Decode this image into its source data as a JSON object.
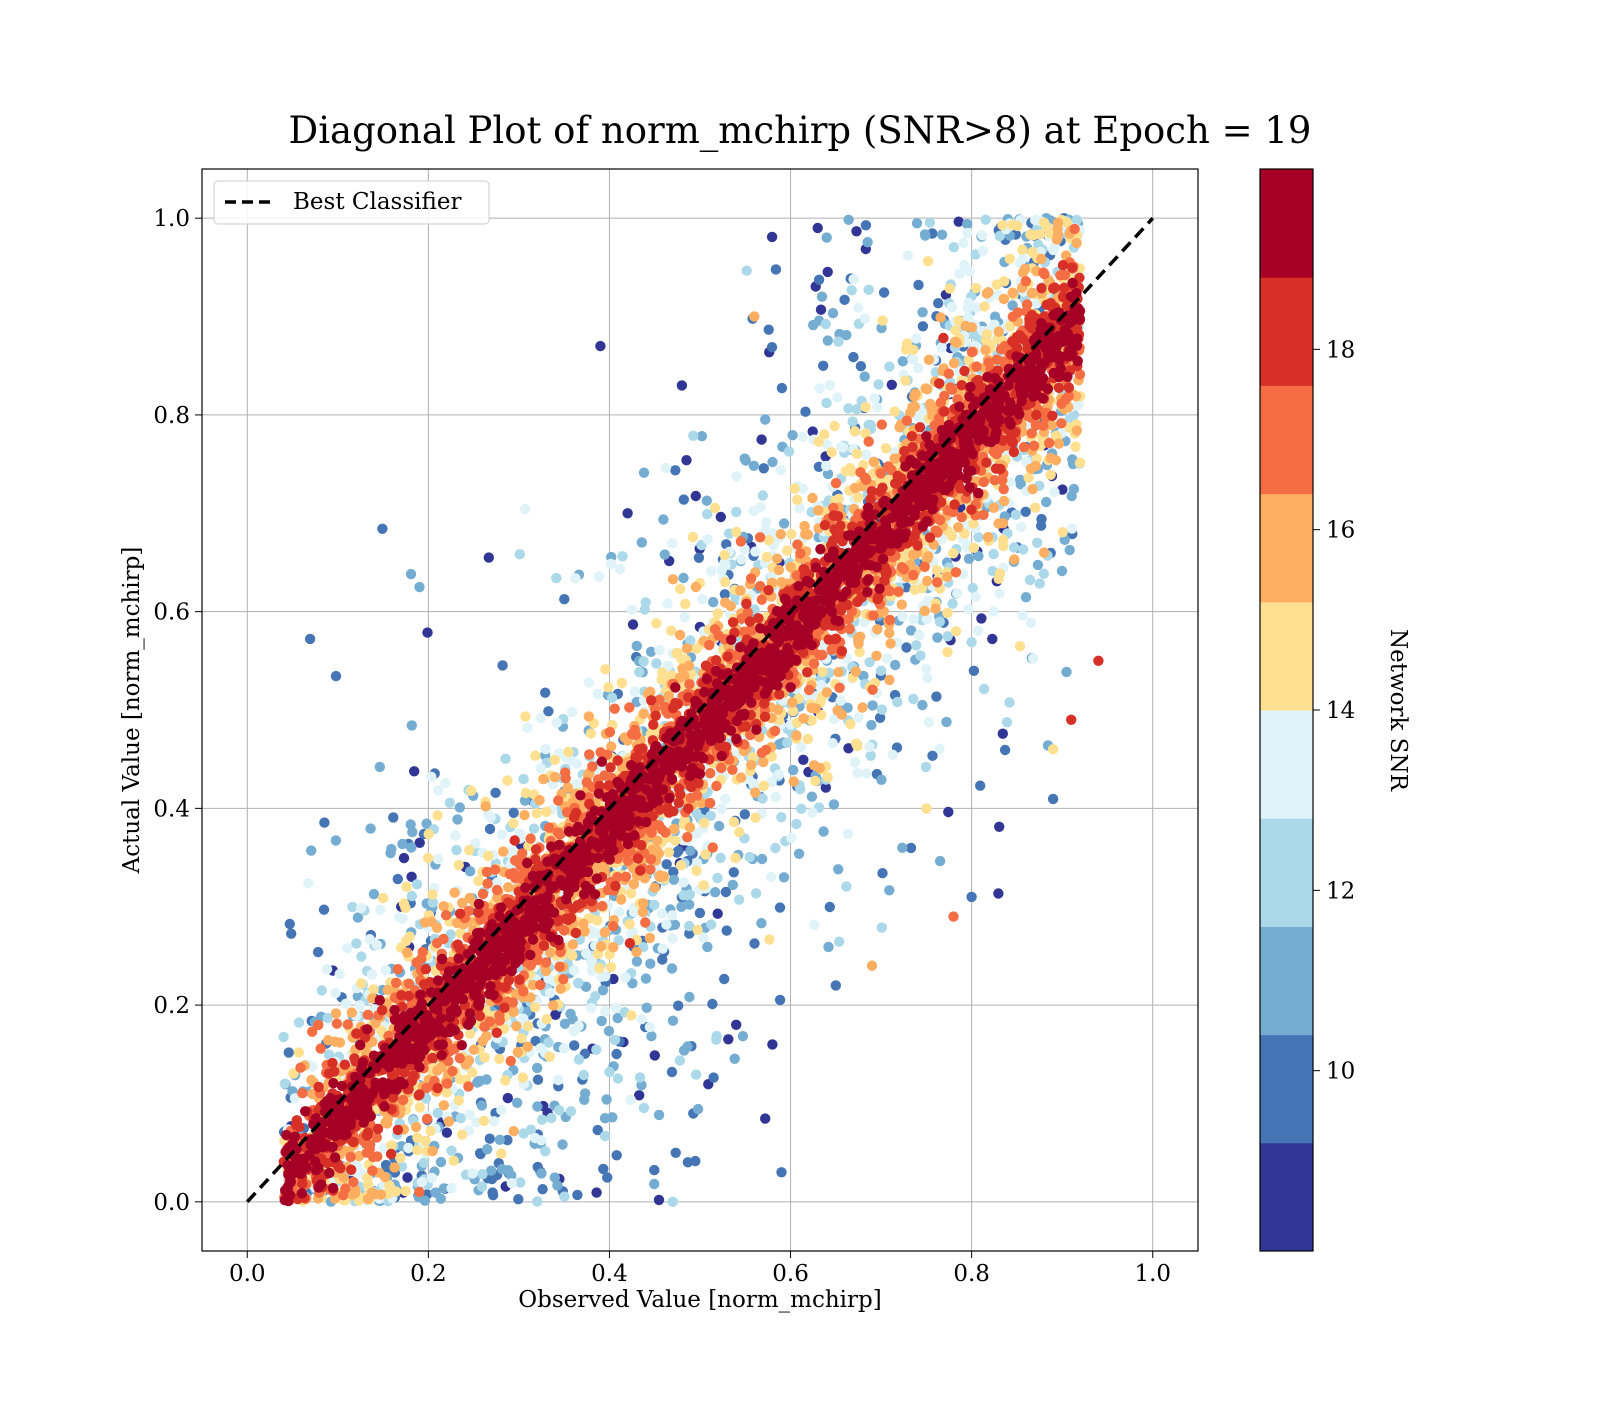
{
  "chart_data": {
    "type": "scatter",
    "title": "Diagonal Plot of norm_mchirp (SNR>8) at Epoch = 19",
    "xlabel": "Observed Value [norm_mchirp]",
    "ylabel": "Actual Value [norm_mchirp]",
    "xlim": [
      -0.05,
      1.05
    ],
    "ylim": [
      -0.05,
      1.05
    ],
    "xticks": [
      "0.0",
      "0.2",
      "0.4",
      "0.6",
      "0.8",
      "1.0"
    ],
    "yticks": [
      "0.0",
      "0.2",
      "0.4",
      "0.6",
      "0.8",
      "1.0"
    ],
    "grid": true,
    "legend": {
      "placement": "upper-left",
      "entries": [
        "Best Classifier"
      ]
    },
    "reference_line": {
      "name": "Best Classifier",
      "x": [
        0.0,
        1.0
      ],
      "y": [
        0.0,
        1.0
      ],
      "style": "dashed",
      "color": "#000000"
    },
    "colorbar": {
      "label": "Network SNR",
      "range": [
        8,
        20
      ],
      "ticks": [
        "10",
        "12",
        "14",
        "16",
        "18"
      ],
      "tick_values": [
        10,
        12,
        14,
        16,
        18
      ],
      "colors": [
        "#313695",
        "#4575b4",
        "#74add1",
        "#abd9e9",
        "#e0f3f8",
        "#fee090",
        "#fdae61",
        "#f46d43",
        "#d73027",
        "#a50026"
      ]
    },
    "points_sample": [
      {
        "x": 0.39,
        "y": 0.87,
        "snr": 9
      },
      {
        "x": 0.63,
        "y": 0.99,
        "snr": 9
      },
      {
        "x": 0.17,
        "y": 0.3,
        "snr": 9
      },
      {
        "x": 0.42,
        "y": 0.7,
        "snr": 9
      },
      {
        "x": 0.56,
        "y": 0.9,
        "snr": 16
      },
      {
        "x": 0.59,
        "y": 0.03,
        "snr": 10
      },
      {
        "x": 0.91,
        "y": 0.49,
        "snr": 18
      },
      {
        "x": 0.89,
        "y": 0.46,
        "snr": 15
      },
      {
        "x": 0.78,
        "y": 0.29,
        "snr": 17
      },
      {
        "x": 0.69,
        "y": 0.24,
        "snr": 16
      },
      {
        "x": 0.88,
        "y": 0.66,
        "snr": 16
      },
      {
        "x": 0.94,
        "y": 0.55,
        "snr": 18
      },
      {
        "x": 0.19,
        "y": 0.01,
        "snr": 17
      },
      {
        "x": 0.47,
        "y": 0.0,
        "snr": 12
      },
      {
        "x": 0.48,
        "y": 0.83,
        "snr": 9
      },
      {
        "x": 0.58,
        "y": 0.16,
        "snr": 9
      },
      {
        "x": 0.54,
        "y": 0.18,
        "snr": 9
      },
      {
        "x": 0.65,
        "y": 0.22,
        "snr": 10
      },
      {
        "x": 0.8,
        "y": 0.31,
        "snr": 10
      },
      {
        "x": 0.75,
        "y": 0.4,
        "snr": 14
      }
    ]
  }
}
